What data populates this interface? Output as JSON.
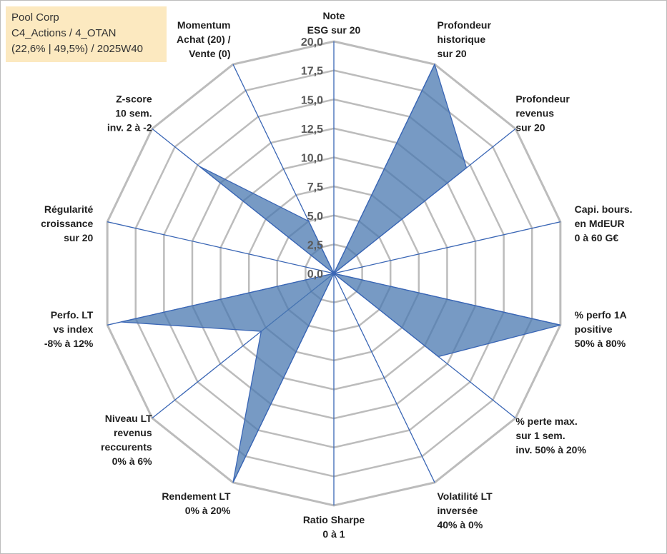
{
  "info_box": {
    "line1": "Pool Corp",
    "line2": "C4_Actions / 4_OTAN",
    "line3": "(22,6% | 49,5%) / 2025W40"
  },
  "chart_data": {
    "type": "radar",
    "rmin": 0,
    "rmax": 20,
    "tick_labels": [
      "0,0",
      "2,5",
      "5,0",
      "7,5",
      "10,0",
      "12,5",
      "15,0",
      "17,5",
      "20,0"
    ],
    "categories": [
      [
        "Note",
        "ESG sur 20"
      ],
      [
        "Profondeur",
        "historique",
        "sur 20"
      ],
      [
        "Profondeur",
        "revenus",
        "sur 20"
      ],
      [
        "Capi. bours.",
        "en MdEUR",
        "0 à 60 G€"
      ],
      [
        "% perfo 1A",
        "positive",
        "50% à 80%"
      ],
      [
        "% perte max.",
        "sur 1 sem.",
        "inv. 50% à 20%"
      ],
      [
        "Volatilité LT",
        "inversée",
        "40% à 0%"
      ],
      [
        "Ratio Sharpe",
        "0 à 1"
      ],
      [
        "Rendement LT",
        "0% à 20%"
      ],
      [
        "Niveau LT",
        "revenus",
        "reccurents",
        "0% à 6%"
      ],
      [
        "Perfo. LT",
        "vs index",
        "-8% à 12%"
      ],
      [
        "Régularité",
        "croissance",
        "sur 20"
      ],
      [
        "Z-score",
        "10 sem.",
        "inv. 2 à -2"
      ],
      [
        "Momentum",
        "Achat (20) /",
        "Vente (0)"
      ]
    ],
    "series": [
      {
        "values": [
          0,
          20,
          14.6,
          0,
          20,
          11.5,
          0,
          0,
          20,
          8,
          18.8,
          0,
          14.8,
          5
        ]
      }
    ],
    "grid": true,
    "legend": "none",
    "fill_color": "#4a78b0",
    "fill_opacity": 0.75,
    "axis_color": "#3a66b5",
    "grid_color": "#bcbcbc",
    "tick_color": "#595959"
  }
}
